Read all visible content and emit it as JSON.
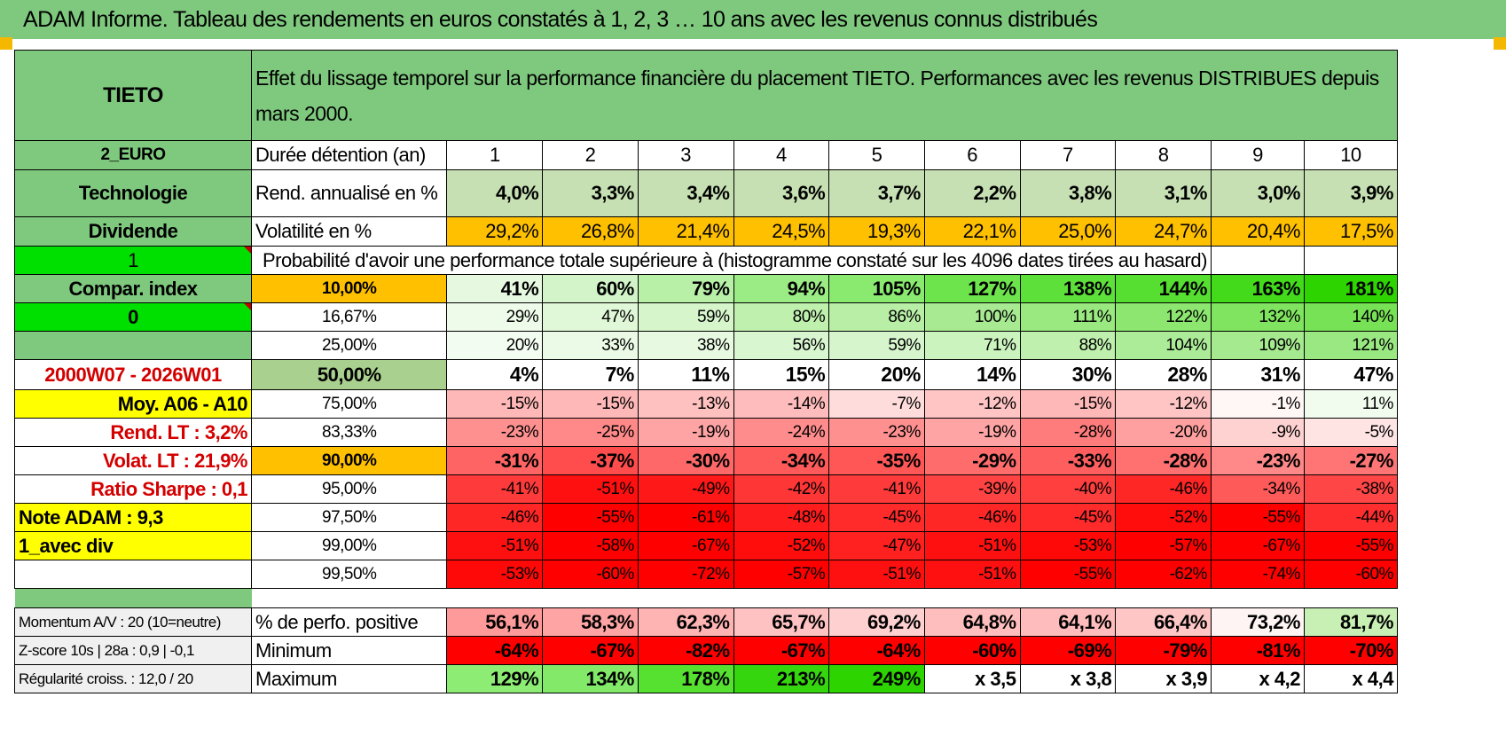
{
  "title": "ADAM Informe. Tableau des rendements en euros constatés à 1, 2, 3 … 10 ans avec les revenus connus distribués",
  "colors": {
    "header_green": "#7fc97f",
    "input_green": "#00e000",
    "highlight_yellow": "#ffff00",
    "orange": "#ffc000",
    "label_red": "#d40000"
  },
  "left": {
    "name": "TIETO",
    "currency": "2_EURO",
    "sector": "Technologie",
    "type": "Dividende",
    "input1": "1",
    "compar": "Compar. index",
    "input2": "0",
    "period": "2000W07 - 2026W01",
    "moy": "Moy. A06 - A10",
    "rend_lt": "Rend. LT :    3,2%",
    "volat_lt": "Volat. LT :    21,9%",
    "sharpe": "Ratio Sharpe :     0,1",
    "note": "Note ADAM : 9,3",
    "mode": "1_avec div",
    "momentum": "Momentum A/V : 20 (10=neutre)",
    "zscore": "Z-score 10s | 28a : 0,9 | -0,1",
    "regularite": "Régularité croiss. : 12,0 / 20"
  },
  "header": {
    "description": "Effet du lissage temporel sur la performance financière du placement TIETO. Performances avec les revenus DISTRIBUES depuis mars 2000.",
    "duration_label": "Durée détention (an)",
    "years": [
      "1",
      "2",
      "3",
      "4",
      "5",
      "6",
      "7",
      "8",
      "9",
      "10"
    ]
  },
  "rend": {
    "label": "Rend. annualisé en %",
    "values": [
      "4,0%",
      "3,3%",
      "3,4%",
      "3,6%",
      "3,7%",
      "2,2%",
      "3,8%",
      "3,1%",
      "3,0%",
      "3,9%"
    ],
    "colors": [
      "#c6e0b4",
      "#c6e0b4",
      "#c6e0b4",
      "#c6e0b4",
      "#c6e0b4",
      "#c6e0b4",
      "#c6e0b4",
      "#c6e0b4",
      "#c6e0b4",
      "#c6e0b4"
    ]
  },
  "vol": {
    "label": "Volatilité en %",
    "values": [
      "29,2%",
      "26,8%",
      "21,4%",
      "24,5%",
      "19,3%",
      "22,1%",
      "25,0%",
      "24,7%",
      "20,4%",
      "17,5%"
    ]
  },
  "prob_title": "Probabilité d'avoir une performance totale supérieure à (histogramme constaté sur les 4096 dates tirées au hasard)",
  "quantiles": [
    {
      "p": "10,00%",
      "pc": "#ffc000",
      "bold": true,
      "values": [
        "41%",
        "60%",
        "79%",
        "94%",
        "105%",
        "127%",
        "138%",
        "144%",
        "163%",
        "181%"
      ],
      "colors": [
        "#e6f8e0",
        "#d2f4c8",
        "#b8f0a8",
        "#9cec86",
        "#8aea70",
        "#6ee44c",
        "#5ee03a",
        "#56de30",
        "#44da1c",
        "#2ed400"
      ]
    },
    {
      "p": "16,67%",
      "pc": "#ffffff",
      "bold": false,
      "values": [
        "29%",
        "47%",
        "59%",
        "80%",
        "86%",
        "100%",
        "111%",
        "122%",
        "132%",
        "140%"
      ],
      "colors": [
        "#eefbea",
        "#e0f8d8",
        "#d6f5cb",
        "#c0f0ae",
        "#b8eea6",
        "#a8ea92",
        "#9ae880",
        "#8ce670",
        "#80e460",
        "#78e256"
      ]
    },
    {
      "p": "25,00%",
      "pc": "#ffffff",
      "bold": false,
      "values": [
        "20%",
        "33%",
        "38%",
        "56%",
        "59%",
        "71%",
        "88%",
        "104%",
        "109%",
        "121%"
      ],
      "colors": [
        "#f3fcf0",
        "#ebfae6",
        "#e8f9e2",
        "#d8f6d0",
        "#d6f5cc",
        "#cbf3be",
        "#bff0ae",
        "#acec98",
        "#a6ea90",
        "#9ae882"
      ]
    },
    {
      "p": "50,00%",
      "pc": "#a9d08e",
      "bold": true,
      "big": true,
      "values": [
        "4%",
        "7%",
        "11%",
        "15%",
        "20%",
        "14%",
        "30%",
        "28%",
        "31%",
        "47%"
      ],
      "colors": [
        "#ffffff",
        "#ffffff",
        "#ffffff",
        "#ffffff",
        "#ffffff",
        "#ffffff",
        "#ffffff",
        "#ffffff",
        "#ffffff",
        "#ffffff"
      ]
    },
    {
      "p": "75,00%",
      "pc": "#ffffff",
      "bold": false,
      "values": [
        "-15%",
        "-15%",
        "-13%",
        "-14%",
        "-7%",
        "-12%",
        "-15%",
        "-12%",
        "-1%",
        "11%"
      ],
      "colors": [
        "#ffb8b8",
        "#ffb8b8",
        "#ffc0c0",
        "#ffbcbc",
        "#ffdcdc",
        "#ffc4c4",
        "#ffb8b8",
        "#ffc4c4",
        "#fff6f6",
        "#f2fcee"
      ]
    },
    {
      "p": "83,33%",
      "pc": "#ffffff",
      "bold": false,
      "values": [
        "-23%",
        "-25%",
        "-19%",
        "-24%",
        "-23%",
        "-19%",
        "-28%",
        "-20%",
        "-9%",
        "-5%"
      ],
      "colors": [
        "#ff9090",
        "#ff8888",
        "#ffa4a4",
        "#ff8c8c",
        "#ff9090",
        "#ffa4a4",
        "#ff7c7c",
        "#ffa0a0",
        "#ffd2d2",
        "#ffe4e4"
      ]
    },
    {
      "p": "90,00%",
      "pc": "#ffc000",
      "bold": true,
      "values": [
        "-31%",
        "-37%",
        "-30%",
        "-34%",
        "-35%",
        "-29%",
        "-33%",
        "-28%",
        "-23%",
        "-27%"
      ],
      "colors": [
        "#ff6464",
        "#ff4c4c",
        "#ff6868",
        "#ff5a5a",
        "#ff5656",
        "#ff6c6c",
        "#ff5e5e",
        "#ff7070",
        "#ff8888",
        "#ff7474"
      ]
    },
    {
      "p": "95,00%",
      "pc": "#ffffff",
      "bold": false,
      "values": [
        "-41%",
        "-51%",
        "-49%",
        "-42%",
        "-41%",
        "-39%",
        "-40%",
        "-46%",
        "-34%",
        "-38%"
      ],
      "colors": [
        "#ff3a3a",
        "#ff1010",
        "#ff1818",
        "#ff3636",
        "#ff3a3a",
        "#ff4242",
        "#ff3e3e",
        "#ff2626",
        "#ff5a5a",
        "#ff4646"
      ]
    },
    {
      "p": "97,50%",
      "pc": "#ffffff",
      "bold": false,
      "values": [
        "-46%",
        "-55%",
        "-61%",
        "-48%",
        "-45%",
        "-46%",
        "-45%",
        "-52%",
        "-55%",
        "-44%"
      ],
      "colors": [
        "#ff2626",
        "#ff0000",
        "#ff0000",
        "#ff1c1c",
        "#ff2a2a",
        "#ff2626",
        "#ff2a2a",
        "#ff0c0c",
        "#ff0000",
        "#ff2e2e"
      ]
    },
    {
      "p": "99,00%",
      "pc": "#ffffff",
      "bold": false,
      "values": [
        "-51%",
        "-58%",
        "-67%",
        "-52%",
        "-47%",
        "-51%",
        "-53%",
        "-57%",
        "-67%",
        "-55%"
      ],
      "colors": [
        "#ff1010",
        "#ff0000",
        "#ff0000",
        "#ff0c0c",
        "#ff2020",
        "#ff1010",
        "#ff0808",
        "#ff0000",
        "#ff0000",
        "#ff0000"
      ]
    },
    {
      "p": "99,50%",
      "pc": "#ffffff",
      "bold": false,
      "values": [
        "-53%",
        "-60%",
        "-72%",
        "-57%",
        "-51%",
        "-51%",
        "-55%",
        "-62%",
        "-74%",
        "-60%"
      ],
      "colors": [
        "#ff0808",
        "#ff0000",
        "#ff0000",
        "#ff0000",
        "#ff1010",
        "#ff1010",
        "#ff0000",
        "#ff0000",
        "#ff0000",
        "#ff0000"
      ]
    }
  ],
  "bottom": {
    "pos_label": "% de perfo. positive",
    "pos_values": [
      "56,1%",
      "58,3%",
      "62,3%",
      "65,7%",
      "69,2%",
      "64,8%",
      "64,1%",
      "66,4%",
      "73,2%",
      "81,7%"
    ],
    "pos_colors": [
      "#ff9a9a",
      "#ffa4a4",
      "#ffb4b4",
      "#ffc2c2",
      "#ffd0d0",
      "#ffbebe",
      "#ffbcbc",
      "#ffc6c6",
      "#fff4f4",
      "#c8f0b4"
    ],
    "min_label": "Minimum",
    "min_values": [
      "-64%",
      "-67%",
      "-82%",
      "-67%",
      "-64%",
      "-60%",
      "-69%",
      "-79%",
      "-81%",
      "-70%"
    ],
    "max_label": "Maximum",
    "max_values": [
      "129%",
      "134%",
      "178%",
      "213%",
      "249%",
      "x 3,5",
      "x 3,8",
      "x 3,9",
      "x 4,2",
      "x 4,4"
    ],
    "max_colors": [
      "#8cec74",
      "#82ea68",
      "#56e030",
      "#36d60e",
      "#2ed400",
      "#ffffff",
      "#ffffff",
      "#ffffff",
      "#ffffff",
      "#ffffff"
    ]
  }
}
